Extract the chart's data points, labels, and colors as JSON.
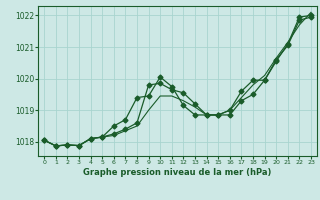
{
  "title": "Graphe pression niveau de la mer (hPa)",
  "bg_color": "#cde8e5",
  "grid_color": "#a8d4cf",
  "line_color": "#1a5c2a",
  "xlim": [
    -0.5,
    23.5
  ],
  "ylim": [
    1017.55,
    1022.3
  ],
  "yticks": [
    1018,
    1019,
    1020,
    1021,
    1022
  ],
  "xticks": [
    0,
    1,
    2,
    3,
    4,
    5,
    6,
    7,
    8,
    9,
    10,
    11,
    12,
    13,
    14,
    15,
    16,
    17,
    18,
    19,
    20,
    21,
    22,
    23
  ],
  "series": [
    {
      "x": [
        0,
        1,
        2,
        3,
        4,
        5,
        6,
        7,
        8,
        9,
        10,
        11,
        12,
        13,
        14,
        15,
        16,
        17,
        18,
        19,
        20,
        21,
        22,
        23
      ],
      "y": [
        1018.05,
        1017.87,
        1017.9,
        1017.88,
        1018.1,
        1018.15,
        1018.25,
        1018.4,
        1018.6,
        1019.8,
        1019.85,
        1019.65,
        1019.55,
        1019.2,
        1018.85,
        1018.85,
        1018.85,
        1019.3,
        1019.5,
        1019.95,
        1020.6,
        1021.05,
        1021.85,
        1021.95
      ],
      "marker": "D",
      "markersize": 2.5,
      "linewidth": 0.9,
      "linestyle": "-"
    },
    {
      "x": [
        0,
        1,
        2,
        3,
        4,
        5,
        6,
        7,
        8,
        9,
        10,
        11,
        12,
        13,
        14,
        15,
        16,
        17,
        18,
        19,
        20,
        21,
        22,
        23
      ],
      "y": [
        1018.05,
        1017.87,
        1017.9,
        1017.88,
        1018.1,
        1018.15,
        1018.5,
        1018.7,
        1019.4,
        1019.45,
        1020.05,
        1019.75,
        1019.15,
        1018.85,
        1018.85,
        1018.85,
        1019.0,
        1019.6,
        1019.95,
        1019.95,
        1020.55,
        1021.1,
        1021.95,
        1022.0
      ],
      "marker": "D",
      "markersize": 2.5,
      "linewidth": 0.9,
      "linestyle": "-"
    },
    {
      "x": [
        0,
        1,
        2,
        3,
        4,
        5,
        6,
        7,
        8,
        9,
        10,
        11,
        12,
        13,
        14,
        15,
        16,
        17,
        18,
        19,
        20,
        21,
        22,
        23
      ],
      "y": [
        1018.05,
        1017.87,
        1017.9,
        1017.88,
        1018.1,
        1018.15,
        1018.2,
        1018.35,
        1018.5,
        1019.0,
        1019.45,
        1019.45,
        1019.3,
        1019.1,
        1018.85,
        1018.85,
        1019.0,
        1019.4,
        1019.8,
        1020.1,
        1020.65,
        1021.15,
        1021.7,
        1022.1
      ],
      "marker": null,
      "markersize": 0,
      "linewidth": 0.8,
      "linestyle": "-"
    }
  ]
}
